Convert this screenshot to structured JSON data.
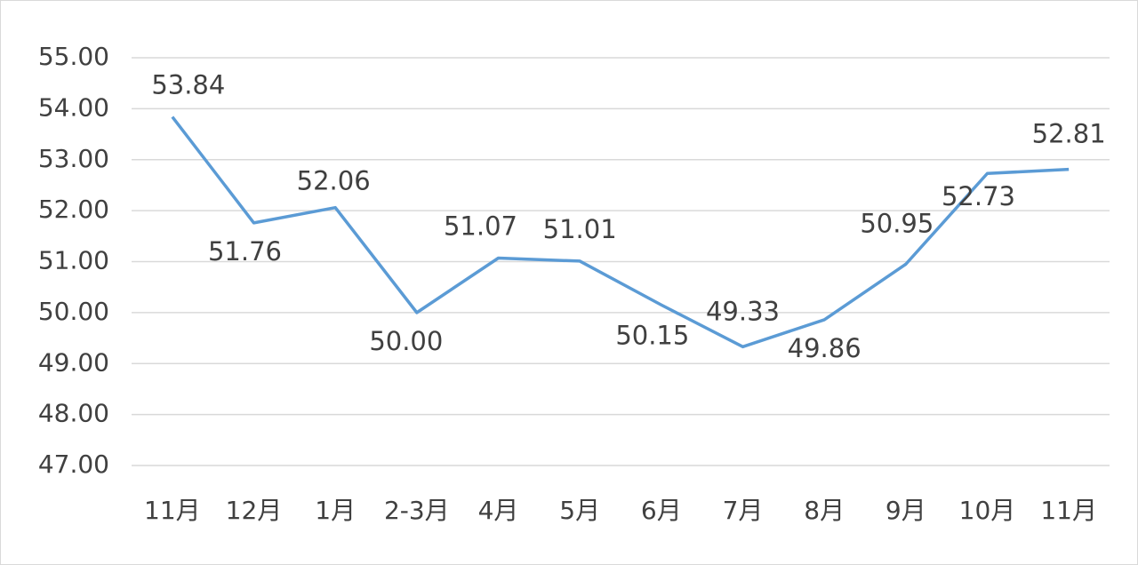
{
  "chart_data": {
    "type": "line",
    "categories": [
      "11月",
      "12月",
      "1月",
      "2-3月",
      "4月",
      "5月",
      "6月",
      "7月",
      "8月",
      "9月",
      "10月",
      "11月"
    ],
    "series": [
      {
        "color": "#5b9bd5",
        "values": [
          53.84,
          51.76,
          52.06,
          50.0,
          51.07,
          51.01,
          50.15,
          49.33,
          49.86,
          50.95,
          52.73,
          52.81
        ],
        "value_labels": [
          "53.84",
          "51.76",
          "52.06",
          "50.00",
          "51.07",
          "51.01",
          "50.15",
          "49.33",
          "49.86",
          "50.95",
          "52.73",
          "52.81"
        ]
      }
    ],
    "ylim": [
      47,
      55
    ],
    "yticks": [
      {
        "value": 47,
        "label": "47.00"
      },
      {
        "value": 48,
        "label": "48.00"
      },
      {
        "value": 49,
        "label": "49.00"
      },
      {
        "value": 50,
        "label": "50.00"
      },
      {
        "value": 51,
        "label": "51.00"
      },
      {
        "value": 52,
        "label": "52.00"
      },
      {
        "value": 53,
        "label": "53.00"
      },
      {
        "value": 54,
        "label": "54.00"
      },
      {
        "value": 55,
        "label": "55.00"
      }
    ],
    "grid": true
  }
}
